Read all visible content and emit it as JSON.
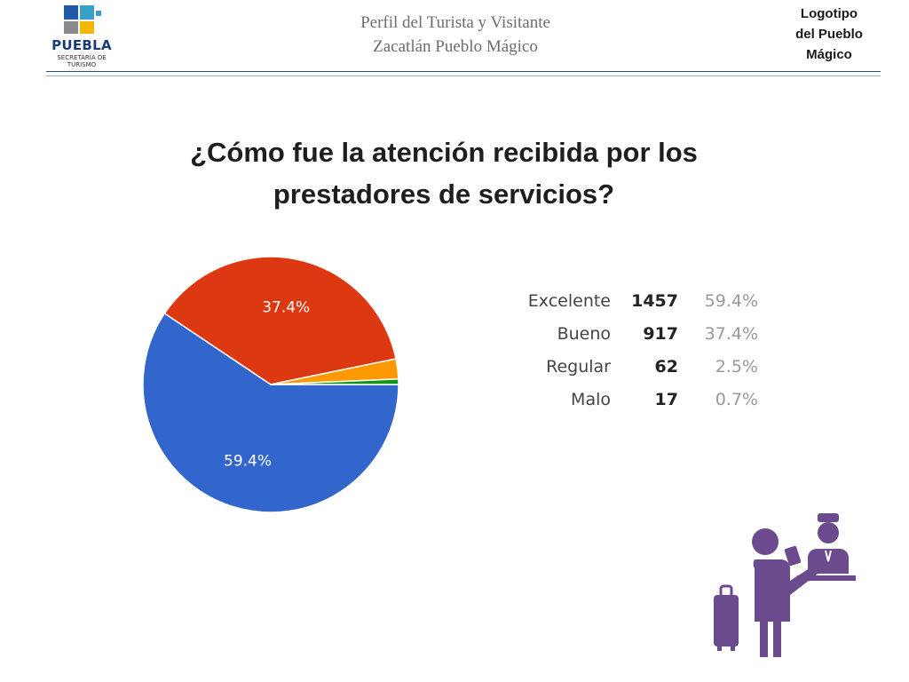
{
  "header": {
    "logo_main": "PUEBLA",
    "logo_sub_line1": "SECRETARÍA DE",
    "logo_sub_line2": "TURISMO",
    "title_line1": "Perfil del Turista y Visitante",
    "title_line2": "Zacatlán Pueblo Mágico",
    "right_placeholder_line1": "Logotipo",
    "right_placeholder_line2": "del Pueblo",
    "right_placeholder_line3": "Mágico"
  },
  "question_line1": "¿Cómo fue la atención recibida por los",
  "question_line2": "prestadores de servicios?",
  "chart_data": {
    "type": "pie",
    "title": "",
    "categories": [
      "Excelente",
      "Bueno",
      "Regular",
      "Malo"
    ],
    "values": [
      1457,
      917,
      62,
      17
    ],
    "percent_labels": [
      "59.4%",
      "37.4%",
      "2.5%",
      "0.7%"
    ],
    "colors": [
      "#3366cc",
      "#dc3912",
      "#ff9900",
      "#109618"
    ],
    "slice_labels_shown": [
      "59.4%",
      "37.4%",
      "",
      ""
    ],
    "legend_placement": "right"
  },
  "illustration": {
    "icon": "traveler-reception-icon",
    "color": "#6b4a8e"
  },
  "logo_colors": {
    "blue": "#1e5aa8",
    "teal": "#3aa0c8",
    "yellow": "#f2b705",
    "gray": "#8a8a8a"
  }
}
